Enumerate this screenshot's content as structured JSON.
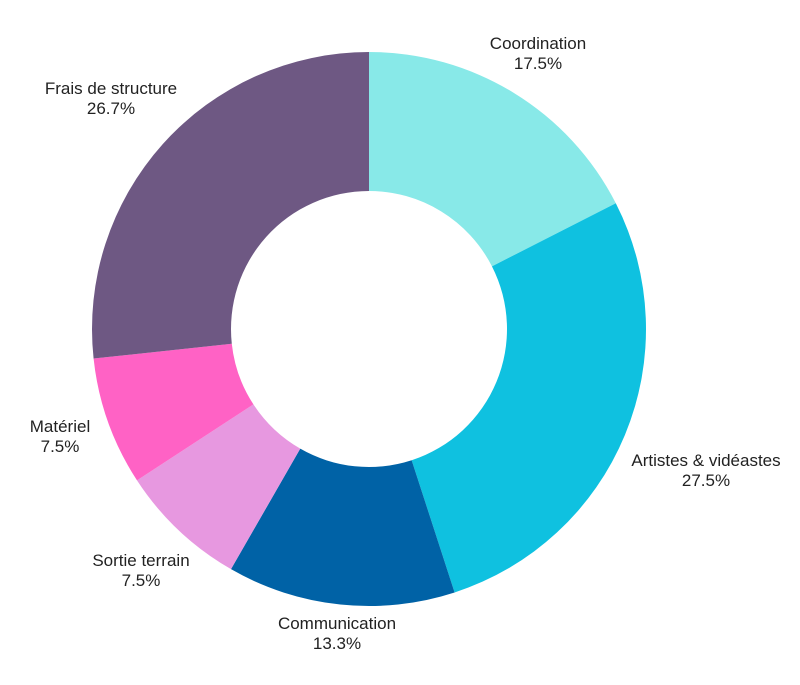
{
  "chart_data": {
    "type": "pie",
    "variant": "donut",
    "title": "",
    "start_angle_deg": 0,
    "direction": "clockwise",
    "slices": [
      {
        "name": "Coordination",
        "value": 17.5,
        "label": "17.5%",
        "color": "#88e9e8"
      },
      {
        "name": "Artistes & vidéastes",
        "value": 27.5,
        "label": "27.5%",
        "color": "#0fc1e0"
      },
      {
        "name": "Communication",
        "value": 13.3,
        "label": "13.3%",
        "color": "#0062a6"
      },
      {
        "name": "Sortie terrain",
        "value": 7.5,
        "label": "7.5%",
        "color": "#e798e0"
      },
      {
        "name": "Matériel",
        "value": 7.5,
        "label": "7.5%",
        "color": "#ff62c5"
      },
      {
        "name": "Frais de structure",
        "value": 26.7,
        "label": "26.7%",
        "color": "#6e5883"
      }
    ]
  }
}
